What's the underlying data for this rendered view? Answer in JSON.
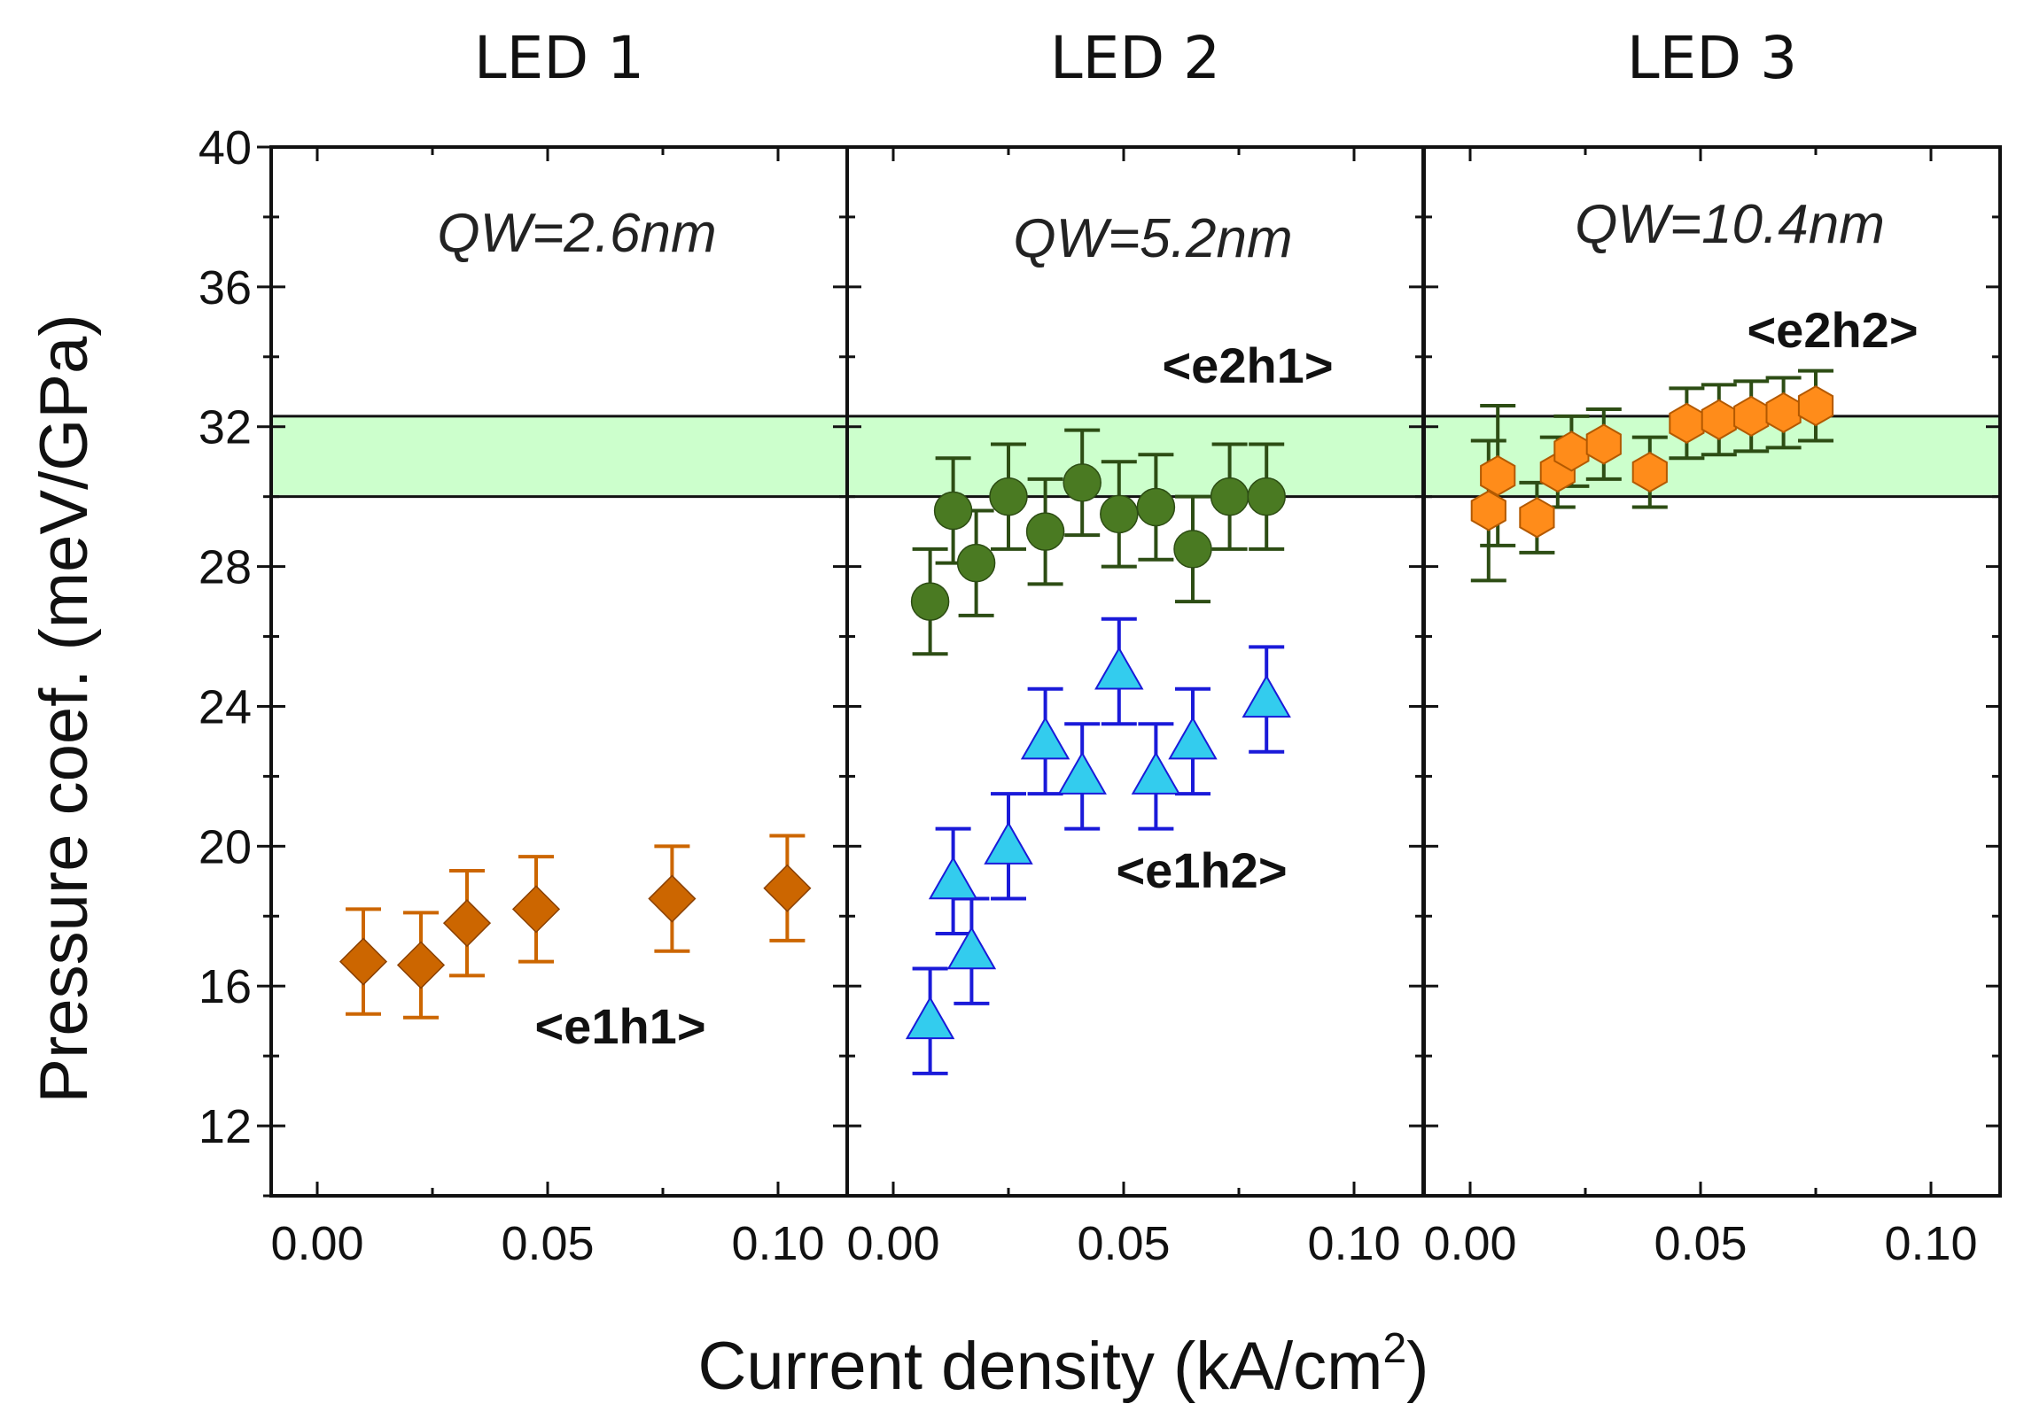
{
  "chart_data": {
    "type": "scatter",
    "ylabel": "Pressure coef. (meV/GPa)",
    "xlabel": "Current density (kA/cm",
    "xlabel_superscript": "2",
    "xlabel_suffix": ")",
    "ylim": [
      10,
      40
    ],
    "yticks": [
      "12",
      "16",
      "20",
      "24",
      "28",
      "32",
      "36",
      "40"
    ],
    "band": {
      "low": 30.0,
      "high": 32.3,
      "color": "#ccffcc"
    },
    "colors": {
      "e1h1": "#cc6600",
      "e2h1": "#4a7a22",
      "e2h1_err": "#2d4d14",
      "e1h2": "#33ccee",
      "e1h2_err": "#1a1ad9",
      "e2h2": "#ff8c1a",
      "e2h2_err": "#2d4d14"
    },
    "panels": [
      {
        "title": "LED 1",
        "qw": "QW=2.6nm",
        "xticks": [
          "0.00",
          "0.05",
          "0.10"
        ],
        "series": [
          {
            "name": "<e1h1>",
            "marker": "diamond",
            "x": [
              0.01,
              0.0225,
              0.0325,
              0.0475,
              0.077,
              0.102
            ],
            "y": [
              16.7,
              16.6,
              17.8,
              18.2,
              18.5,
              18.8
            ],
            "yerr": [
              1.5,
              1.5,
              1.5,
              1.5,
              1.5,
              1.5
            ]
          }
        ]
      },
      {
        "title": "LED 2",
        "qw": "QW=5.2nm",
        "xticks": [
          "0.00",
          "0.05",
          "0.10"
        ],
        "series": [
          {
            "name": "<e2h1>",
            "marker": "circle",
            "x": [
              0.008,
              0.013,
              0.018,
              0.025,
              0.033,
              0.041,
              0.049,
              0.057,
              0.065,
              0.073,
              0.081
            ],
            "y": [
              27.0,
              29.6,
              28.1,
              30.0,
              29.0,
              30.4,
              29.5,
              29.7,
              28.5,
              30.0,
              30.0
            ],
            "yerr": [
              1.5,
              1.5,
              1.5,
              1.5,
              1.5,
              1.5,
              1.5,
              1.5,
              1.5,
              1.5,
              1.5
            ]
          },
          {
            "name": "<e1h2>",
            "marker": "triangle",
            "x": [
              0.008,
              0.013,
              0.017,
              0.025,
              0.033,
              0.041,
              0.049,
              0.057,
              0.065,
              0.081
            ],
            "y": [
              15.0,
              19.0,
              17.0,
              20.0,
              23.0,
              22.0,
              25.0,
              22.0,
              23.0,
              24.2
            ],
            "yerr": [
              1.5,
              1.5,
              1.5,
              1.5,
              1.5,
              1.5,
              1.5,
              1.5,
              1.5,
              1.5
            ]
          }
        ]
      },
      {
        "title": "LED 3",
        "qw": "QW=10.4nm",
        "xticks": [
          "0.00",
          "0.05",
          "0.10"
        ],
        "series": [
          {
            "name": "<e2h2>",
            "marker": "hexagon",
            "x": [
              0.004,
              0.006,
              0.0145,
              0.019,
              0.022,
              0.029,
              0.039,
              0.047,
              0.054,
              0.061,
              0.068,
              0.075
            ],
            "y": [
              29.6,
              30.6,
              29.4,
              30.7,
              31.3,
              31.5,
              30.7,
              32.1,
              32.2,
              32.3,
              32.4,
              32.6
            ],
            "yerr": [
              2.0,
              2.0,
              1.0,
              1.0,
              1.0,
              1.0,
              1.0,
              1.0,
              1.0,
              1.0,
              1.0,
              1.0
            ]
          }
        ]
      }
    ]
  }
}
